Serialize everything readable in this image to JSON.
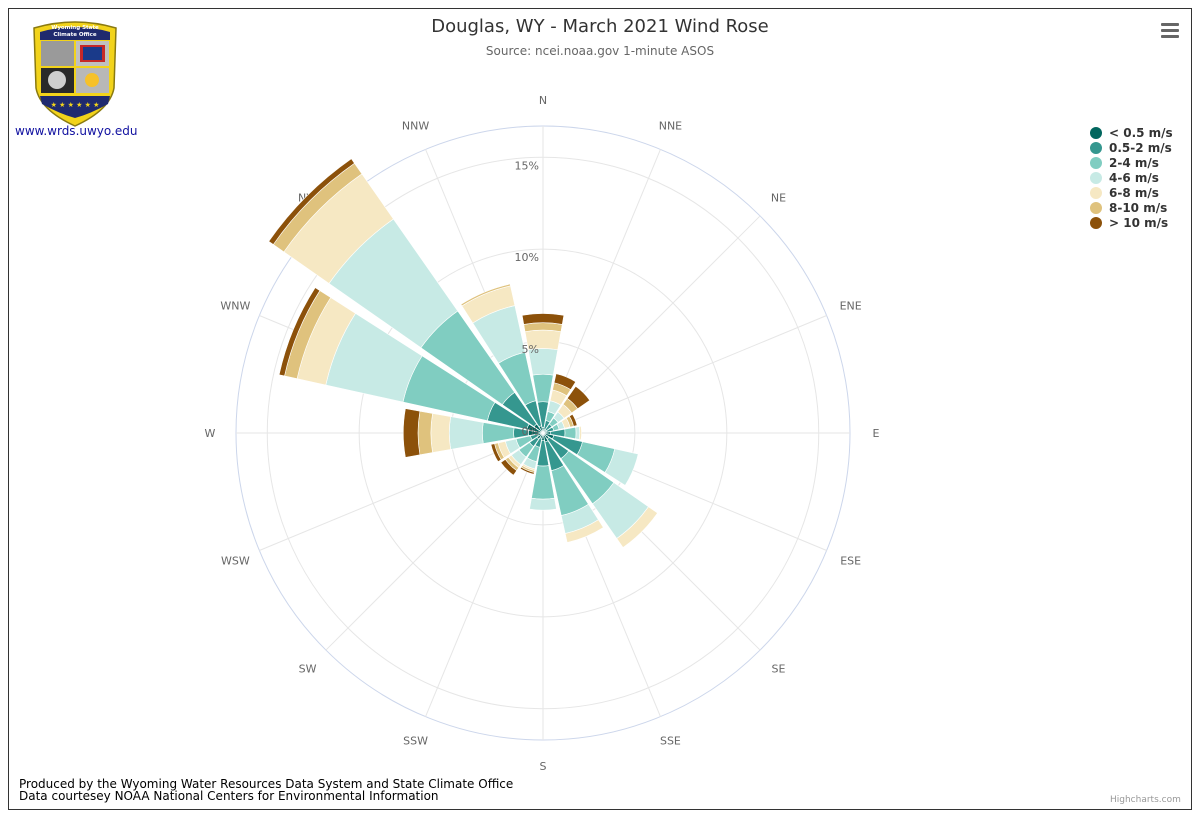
{
  "header": {
    "title": "Douglas, WY - March 2021 Wind Rose",
    "subtitle": "Source: ncei.noaa.gov 1-minute ASOS"
  },
  "logo": {
    "text_line1": "Wyoming State",
    "text_line2": "Climate Office",
    "link": "www.wrds.uwyo.edu"
  },
  "footer": {
    "line1": "Produced by the Wyoming Water Resources Data System and State Climate Office",
    "line2": "Data courtesey NOAA National Centers for Environmental Information"
  },
  "credits": "Highcharts.com",
  "chart_data": {
    "type": "windrose",
    "unit": "%",
    "radial_ticks": [
      "5%",
      "10%",
      "15%"
    ],
    "radial_max": 16.7,
    "directions": [
      "N",
      "NNE",
      "NE",
      "ENE",
      "E",
      "ESE",
      "SE",
      "SSE",
      "S",
      "SSW",
      "SW",
      "WSW",
      "W",
      "WNW",
      "NW",
      "NNW"
    ],
    "series": [
      {
        "name": "< 0.5 m/s",
        "color": "#01665e",
        "values": [
          0.3,
          0.2,
          0.2,
          0.2,
          0.4,
          0.6,
          0.4,
          0.5,
          0.4,
          0.3,
          0.4,
          0.3,
          0.8,
          0.9,
          0.6,
          0.4
        ]
      },
      {
        "name": "0.5-2 m/s",
        "color": "#35978f",
        "values": [
          1.4,
          0.5,
          0.4,
          0.4,
          0.8,
          1.6,
          1.3,
          1.6,
          1.4,
          0.5,
          0.5,
          0.4,
          0.8,
          2.2,
          2.1,
          1.4
        ]
      },
      {
        "name": "2-4 m/s",
        "color": "#80cdc1",
        "values": [
          1.5,
          0.5,
          0.4,
          0.3,
          0.6,
          1.8,
          3.0,
          2.5,
          1.8,
          0.8,
          0.7,
          0.8,
          1.7,
          4.7,
          5.4,
          2.7
        ]
      },
      {
        "name": "4-6 m/s",
        "color": "#c7eae5",
        "values": [
          1.4,
          0.6,
          0.4,
          0.3,
          0.2,
          1.3,
          2.3,
          1.0,
          0.6,
          0.4,
          0.5,
          0.6,
          1.8,
          4.3,
          6.1,
          2.6
        ]
      },
      {
        "name": "6-8 m/s",
        "color": "#f6e8c3",
        "values": [
          1.0,
          0.6,
          0.5,
          0.3,
          0.1,
          0.0,
          0.6,
          0.5,
          0.0,
          0.1,
          0.2,
          0.4,
          1.0,
          1.6,
          3.0,
          1.1
        ]
      },
      {
        "name": "8-10 m/s",
        "color": "#dfc27d",
        "values": [
          0.4,
          0.4,
          0.4,
          0.2,
          0.0,
          0.0,
          0.0,
          0.0,
          0.0,
          0.1,
          0.2,
          0.2,
          0.7,
          0.7,
          0.7,
          0.1
        ]
      },
      {
        "name": "> 10 m/s",
        "color": "#8c510a",
        "values": [
          0.5,
          0.5,
          0.8,
          0.2,
          0.0,
          0.0,
          0.0,
          0.0,
          0.0,
          0.1,
          0.3,
          0.2,
          0.8,
          0.3,
          0.3,
          0.0
        ]
      }
    ]
  }
}
